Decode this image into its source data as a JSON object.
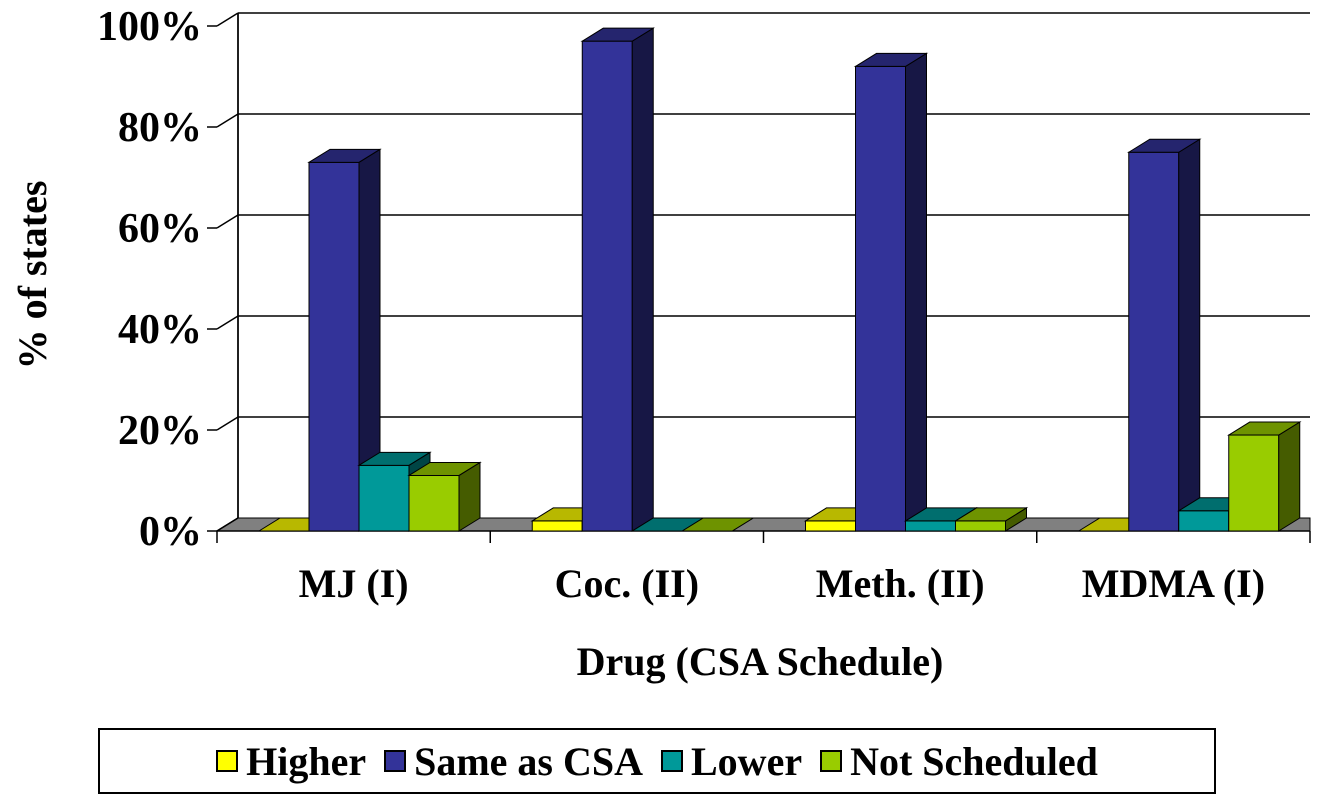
{
  "chart_data": {
    "type": "bar",
    "title": "",
    "xlabel": "Drug (CSA Schedule)",
    "ylabel": "% of states",
    "ylim": [
      0,
      100
    ],
    "yticks": [
      "0%",
      "20%",
      "40%",
      "60%",
      "80%",
      "100%"
    ],
    "categories": [
      "MJ (I)",
      "Coc. (II)",
      "Meth. (II)",
      "MDMA (I)"
    ],
    "series": [
      {
        "name": "Higher",
        "color": "#FFFF00",
        "values": [
          0,
          2,
          2,
          0
        ]
      },
      {
        "name": "Same as CSA",
        "color": "#333399",
        "values": [
          73,
          97,
          92,
          75
        ]
      },
      {
        "name": "Lower",
        "color": "#009999",
        "values": [
          13,
          0,
          2,
          4
        ]
      },
      {
        "name": "Not Scheduled",
        "color": "#99CC00",
        "values": [
          11,
          0,
          2,
          19
        ]
      }
    ],
    "grid": true,
    "legend_position": "bottom",
    "style": "3d-clustered-column"
  }
}
